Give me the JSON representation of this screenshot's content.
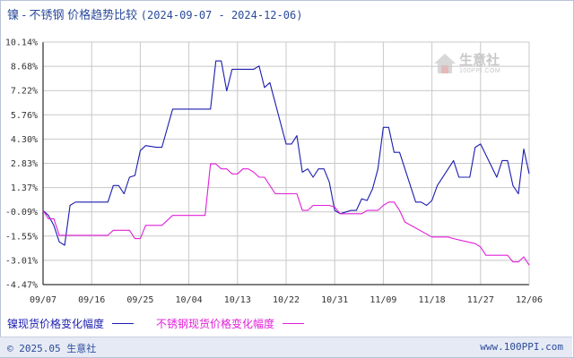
{
  "title": {
    "main": "镍 - 不锈钢 价格趋势比较",
    "dates": "(2024-09-07 - 2024-12-06)"
  },
  "watermark": {
    "text": "生意社",
    "url": "100PPI.COM"
  },
  "legend": {
    "nickel_label": "镍现货价格变化幅度",
    "steel_label": "不锈钢现货价格变化幅度"
  },
  "footer": {
    "left": "© 2025.05 生意社",
    "right": "www.100PPI.com"
  },
  "colors": {
    "nickel": "#1c1cb0",
    "steel": "#e020d8",
    "grid": "#c8c8c8",
    "axis": "#000000",
    "title": "#2a4a9a"
  },
  "chart_data": {
    "type": "line",
    "x_start": "2024-09-07",
    "x_end": "2024-12-06",
    "x_tick_labels": [
      "09/07",
      "09/16",
      "09/25",
      "10/04",
      "10/13",
      "10/22",
      "10/31",
      "11/09",
      "11/18",
      "11/27",
      "12/06"
    ],
    "y_tick_labels": [
      "10.14%",
      "8.68%",
      "7.22%",
      "5.76%",
      "4.30%",
      "2.83%",
      "1.37%",
      "-0.09%",
      "-1.55%",
      "-3.01%",
      "-4.47%"
    ],
    "ylim": [
      -4.47,
      10.14
    ],
    "series": [
      {
        "name": "镍现货价格变化幅度",
        "x": [
          "2024-09-07",
          "2024-09-08",
          "2024-09-09",
          "2024-09-10",
          "2024-09-11",
          "2024-09-12",
          "2024-09-13",
          "2024-09-14",
          "2024-09-18",
          "2024-09-19",
          "2024-09-20",
          "2024-09-21",
          "2024-09-22",
          "2024-09-23",
          "2024-09-24",
          "2024-09-25",
          "2024-09-26",
          "2024-09-28",
          "2024-09-29",
          "2024-10-01",
          "2024-10-02",
          "2024-10-08",
          "2024-10-09",
          "2024-10-10",
          "2024-10-11",
          "2024-10-12",
          "2024-10-14",
          "2024-10-15",
          "2024-10-16",
          "2024-10-17",
          "2024-10-18",
          "2024-10-19",
          "2024-10-22",
          "2024-10-23",
          "2024-10-24",
          "2024-10-25",
          "2024-10-26",
          "2024-10-27",
          "2024-10-28",
          "2024-10-29",
          "2024-10-30",
          "2024-10-31",
          "2024-11-01",
          "2024-11-03",
          "2024-11-04",
          "2024-11-05",
          "2024-11-06",
          "2024-11-07",
          "2024-11-08",
          "2024-11-09",
          "2024-11-10",
          "2024-11-11",
          "2024-11-12",
          "2024-11-15",
          "2024-11-16",
          "2024-11-17",
          "2024-11-18",
          "2024-11-19",
          "2024-11-22",
          "2024-11-23",
          "2024-11-24",
          "2024-11-25",
          "2024-11-26",
          "2024-11-27",
          "2024-11-30",
          "2024-12-01",
          "2024-12-02",
          "2024-12-03",
          "2024-12-04",
          "2024-12-05",
          "2024-12-06"
        ],
        "y": [
          0.0,
          -0.3,
          -0.9,
          -1.9,
          -2.1,
          0.3,
          0.5,
          0.5,
          0.5,
          0.5,
          1.5,
          1.5,
          1.0,
          2.0,
          2.1,
          3.6,
          3.9,
          3.8,
          3.8,
          6.1,
          6.1,
          6.1,
          9.0,
          9.0,
          7.2,
          8.5,
          8.5,
          8.5,
          8.5,
          8.7,
          7.4,
          7.7,
          4.0,
          4.0,
          4.5,
          2.3,
          2.5,
          2.0,
          2.5,
          2.5,
          1.7,
          0.0,
          -0.2,
          0.0,
          0.0,
          0.7,
          0.6,
          1.3,
          2.5,
          5.0,
          5.0,
          3.5,
          3.5,
          0.5,
          0.5,
          0.3,
          0.6,
          1.5,
          3.0,
          2.0,
          2.0,
          2.0,
          3.8,
          4.0,
          2.0,
          3.0,
          3.0,
          1.5,
          1.0,
          3.7,
          2.2
        ]
      },
      {
        "name": "不锈钢现货价格变化幅度",
        "x": [
          "2024-09-07",
          "2024-09-08",
          "2024-09-09",
          "2024-09-10",
          "2024-09-11",
          "2024-09-18",
          "2024-09-19",
          "2024-09-20",
          "2024-09-21",
          "2024-09-22",
          "2024-09-23",
          "2024-09-24",
          "2024-09-25",
          "2024-09-26",
          "2024-09-28",
          "2024-09-29",
          "2024-10-01",
          "2024-10-02",
          "2024-10-03",
          "2024-10-04",
          "2024-10-05",
          "2024-10-06",
          "2024-10-07",
          "2024-10-08",
          "2024-10-09",
          "2024-10-10",
          "2024-10-11",
          "2024-10-12",
          "2024-10-13",
          "2024-10-14",
          "2024-10-15",
          "2024-10-16",
          "2024-10-17",
          "2024-10-18",
          "2024-10-19",
          "2024-10-20",
          "2024-10-21",
          "2024-10-22",
          "2024-10-23",
          "2024-10-24",
          "2024-10-25",
          "2024-10-26",
          "2024-10-27",
          "2024-10-28",
          "2024-10-29",
          "2024-10-30",
          "2024-10-31",
          "2024-11-01",
          "2024-11-03",
          "2024-11-05",
          "2024-11-06",
          "2024-11-07",
          "2024-11-08",
          "2024-11-09",
          "2024-11-10",
          "2024-11-11",
          "2024-11-12",
          "2024-11-13",
          "2024-11-18",
          "2024-11-19",
          "2024-11-20",
          "2024-11-21",
          "2024-11-22",
          "2024-11-26",
          "2024-11-27",
          "2024-11-28",
          "2024-12-01",
          "2024-12-02",
          "2024-12-03",
          "2024-12-04",
          "2024-12-05",
          "2024-12-06"
        ],
        "y": [
          0.0,
          -0.5,
          -0.5,
          -1.5,
          -1.5,
          -1.5,
          -1.5,
          -1.2,
          -1.2,
          -1.2,
          -1.2,
          -1.7,
          -1.7,
          -0.9,
          -0.9,
          -0.9,
          -0.3,
          -0.3,
          -0.3,
          -0.3,
          -0.3,
          -0.3,
          -0.3,
          2.8,
          2.8,
          2.5,
          2.5,
          2.2,
          2.2,
          2.5,
          2.5,
          2.3,
          2.0,
          2.0,
          1.5,
          1.0,
          1.0,
          1.0,
          1.0,
          1.0,
          0.0,
          0.0,
          0.3,
          0.3,
          0.3,
          0.3,
          0.2,
          -0.2,
          -0.2,
          -0.2,
          0.0,
          0.0,
          0.0,
          0.3,
          0.5,
          0.5,
          0.0,
          -0.7,
          -1.6,
          -1.6,
          -1.6,
          -1.6,
          -1.7,
          -2.0,
          -2.2,
          -2.7,
          -2.7,
          -2.7,
          -3.1,
          -3.1,
          -2.8,
          -3.3
        ]
      }
    ],
    "grid": true,
    "legend_position": "bottom-left"
  }
}
